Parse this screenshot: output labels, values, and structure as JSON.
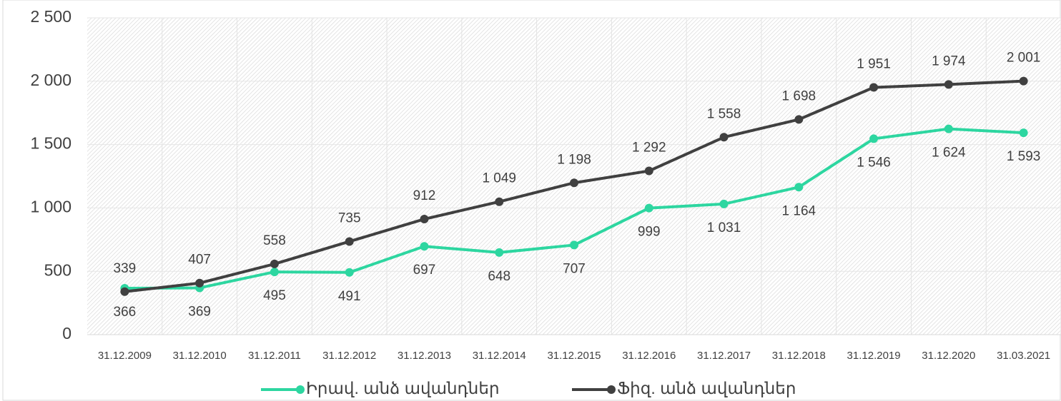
{
  "chart_data": {
    "type": "line",
    "categories": [
      "31.12.2009",
      "31.12.2010",
      "31.12.2011",
      "31.12.2012",
      "31.12.2013",
      "31.12.2014",
      "31.12.2015",
      "31.12.2016",
      "31.12.2017",
      "31.12.2018",
      "31.12.2019",
      "31.12.2020",
      "31.03.2021"
    ],
    "series": [
      {
        "name": "Իրավ. անձ ավանդներ",
        "color": "#2dd6a0",
        "values": [
          366,
          369,
          495,
          491,
          697,
          648,
          707,
          999,
          1031,
          1164,
          1546,
          1624,
          1593
        ],
        "value_labels": [
          "366",
          "369",
          "495",
          "491",
          "697",
          "648",
          "707",
          "999",
          "1 031",
          "1 164",
          "1 546",
          "1 624",
          "1 593"
        ]
      },
      {
        "name": "Ֆիզ. անձ ավանդներ",
        "color": "#404040",
        "values": [
          339,
          407,
          558,
          735,
          912,
          1049,
          1198,
          1292,
          1558,
          1698,
          1951,
          1974,
          2001
        ],
        "value_labels": [
          "339",
          "407",
          "558",
          "735",
          "912",
          "1 049",
          "1 198",
          "1 292",
          "1 558",
          "1 698",
          "1 951",
          "1 974",
          "2 001"
        ]
      }
    ],
    "ylim": [
      0,
      2500
    ],
    "yticks": [
      0,
      500,
      {
        "value": 1000,
        "label": "1 000"
      },
      {
        "value": 1500,
        "label": "1 500"
      },
      {
        "value": 2000,
        "label": "2 000"
      },
      {
        "value": 2500,
        "label": "2 500"
      }
    ],
    "grid": true,
    "legend": "bottom"
  }
}
